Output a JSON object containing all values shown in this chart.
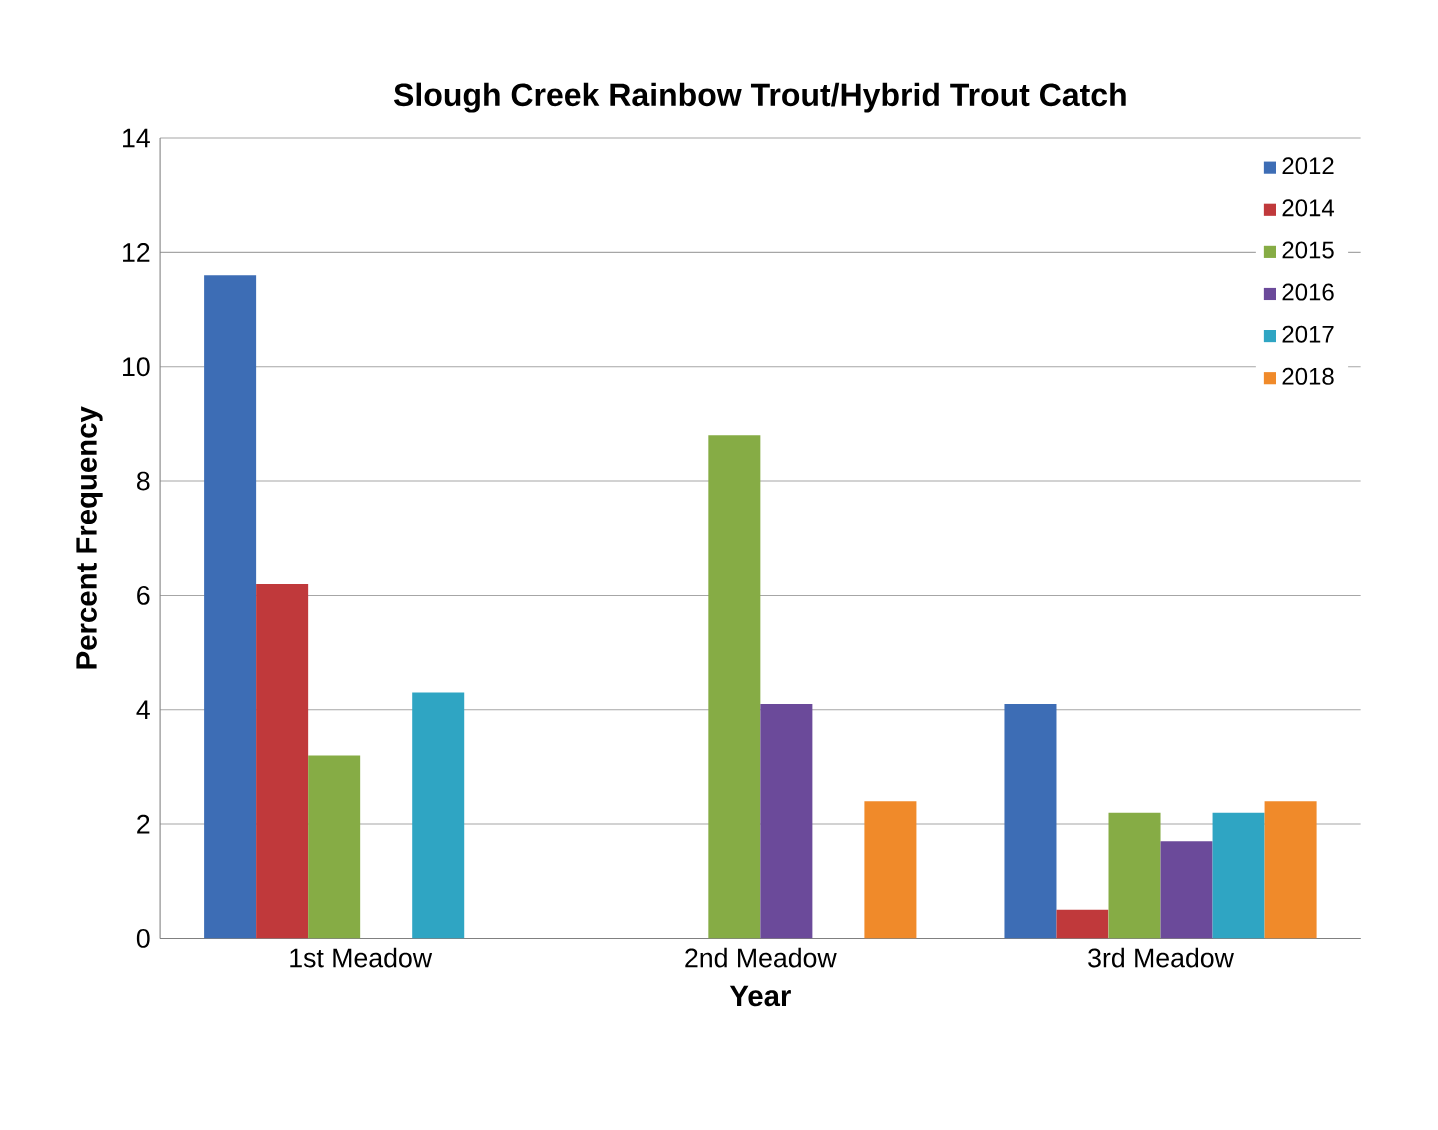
{
  "chart_data": {
    "type": "bar",
    "title": "Slough Creek Rainbow Trout/Hybrid Trout Catch",
    "xlabel": "Year",
    "ylabel": "Percent Frequency",
    "categories": [
      "1st Meadow",
      "2nd Meadow",
      "3rd Meadow"
    ],
    "series": [
      {
        "name": "2012",
        "color": "#3d6db5",
        "values": [
          11.6,
          null,
          4.1
        ]
      },
      {
        "name": "2014",
        "color": "#c0393b",
        "values": [
          6.2,
          null,
          0.5
        ]
      },
      {
        "name": "2015",
        "color": "#86ac45",
        "values": [
          3.2,
          8.8,
          2.2
        ]
      },
      {
        "name": "2016",
        "color": "#6b4a9a",
        "values": [
          null,
          4.1,
          1.7
        ]
      },
      {
        "name": "2017",
        "color": "#2fa5c3",
        "values": [
          4.3,
          null,
          2.2
        ]
      },
      {
        "name": "2018",
        "color": "#f08a2a",
        "values": [
          null,
          2.4,
          2.4
        ]
      }
    ],
    "ylim": [
      0,
      14
    ],
    "yticks": [
      0,
      2,
      4,
      6,
      8,
      10,
      12,
      14
    ],
    "grid": "y",
    "legend": "top right"
  }
}
